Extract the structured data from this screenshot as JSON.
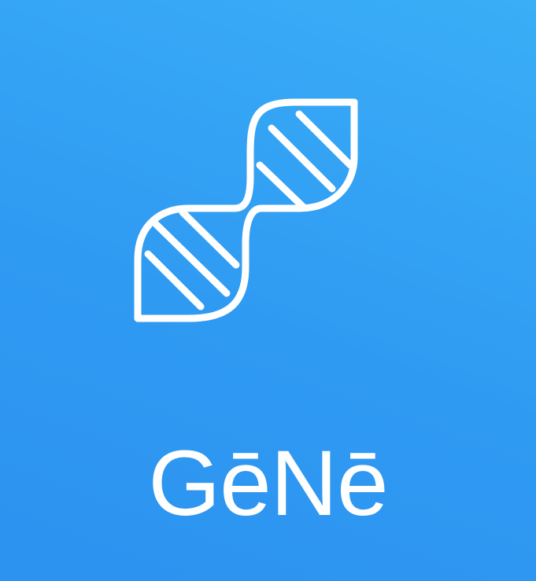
{
  "app": {
    "name": "GēNē",
    "logo_icon": "dna-helix-icon"
  },
  "colors": {
    "background_top": "#3aaef7",
    "background_bottom": "#2c93f0",
    "foreground": "#ffffff"
  }
}
